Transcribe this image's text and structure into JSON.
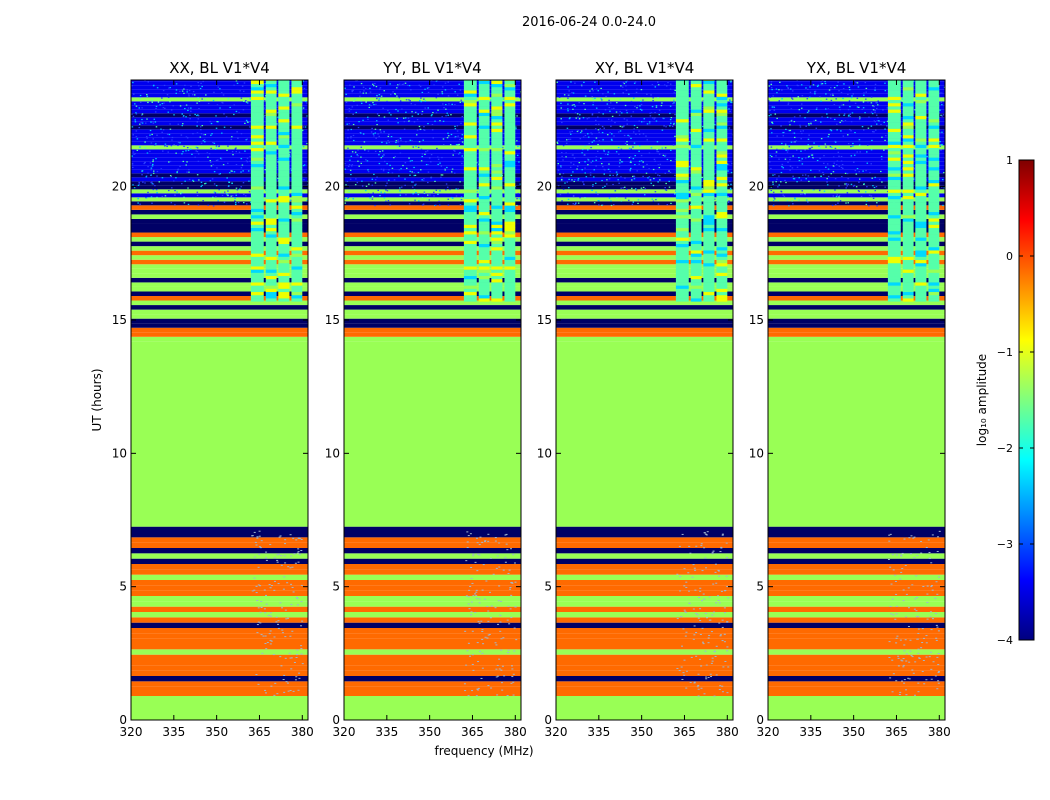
{
  "chart_data": {
    "type": "heatmap",
    "title": "2016-06-24 0.0-24.0",
    "xlabel": "frequency (MHz)",
    "ylabel": "UT (hours)",
    "xlim": [
      320,
      382
    ],
    "ylim": [
      0,
      24
    ],
    "x_ticks": [
      320,
      335,
      350,
      365,
      380
    ],
    "y_ticks": [
      0,
      5,
      10,
      15,
      20
    ],
    "panels": [
      {
        "title": "XX, BL V1*V4"
      },
      {
        "title": "YY, BL V1*V4"
      },
      {
        "title": "XY, BL V1*V4"
      },
      {
        "title": "YX, BL V1*V4"
      }
    ],
    "colorbar": {
      "label": "log₁₀ amplitude",
      "range": [
        -4,
        1
      ],
      "ticks": [
        "1",
        "0",
        "−1",
        "−2",
        "−3",
        "−4"
      ],
      "colormap": [
        "#00007f",
        "#0000ff",
        "#007fff",
        "#00ffff",
        "#7fff7f",
        "#ffff00",
        "#ff7f00",
        "#ff0000",
        "#7f0000"
      ]
    },
    "colors": {
      "baseline_level": "#99ff55",
      "orange_band": "#ff6a00",
      "dark_line": "#000066",
      "blue_noise": "#0000ee",
      "cyan_noise": "#55ffaa",
      "yellow_noise": "#eeff00"
    }
  }
}
